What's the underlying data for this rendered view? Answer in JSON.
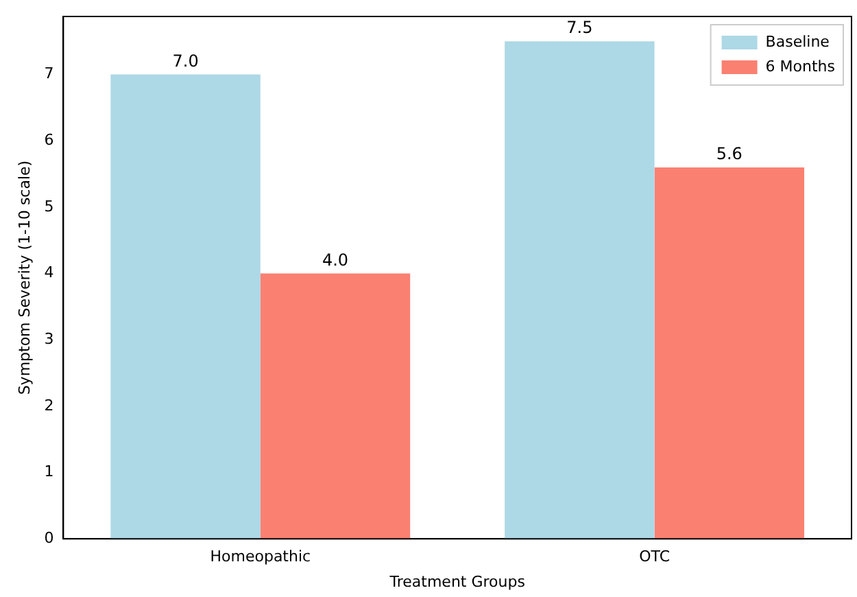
{
  "chart_data": {
    "type": "bar",
    "xlabel": "Treatment Groups",
    "ylabel": "Symptom Severity (1-10 scale)",
    "categories": [
      "Homeopathic",
      "OTC"
    ],
    "series": [
      {
        "name": "Baseline",
        "color": "#add8e6",
        "values": [
          7.0,
          7.5
        ],
        "value_labels": [
          "7.0",
          "7.5"
        ]
      },
      {
        "name": "6 Months",
        "color": "#fa8072",
        "values": [
          4.0,
          5.6
        ],
        "value_labels": [
          "4.0",
          "5.6"
        ]
      }
    ],
    "ylim": [
      0,
      7.875
    ],
    "yticks": [
      0,
      1,
      2,
      3,
      4,
      5,
      6,
      7
    ],
    "grid": false,
    "legend": "top right"
  }
}
